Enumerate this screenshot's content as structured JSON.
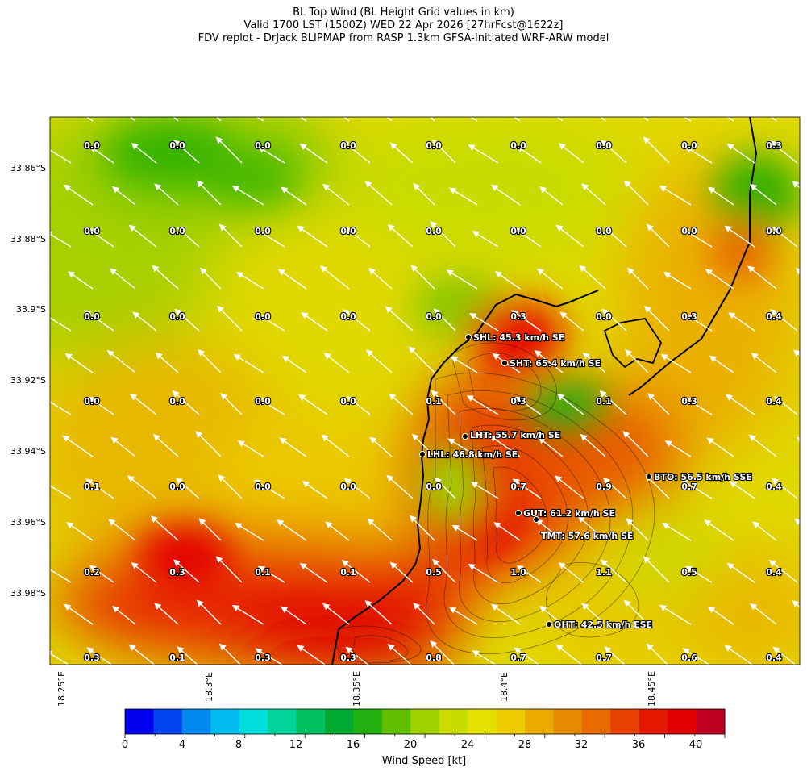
{
  "header": {
    "line1": "BL Top Wind (BL Height Grid values in km)",
    "line2": "Valid 1700 LST (1500Z) WED 22 Apr 2026 [27hrFcst@1622z]",
    "line3": "FDV replot - DrJack BLIPMAP from RASP 1.3km GFSA-Initiated WRF-ARW model"
  },
  "axes": {
    "lat_labels": [
      "33.86°S",
      "33.88°S",
      "33.9°S",
      "33.92°S",
      "33.94°S",
      "33.96°S",
      "33.98°S"
    ],
    "lon_labels": [
      "18.25°E",
      "18.3°E",
      "18.35°E",
      "18.4°E",
      "18.45°E"
    ]
  },
  "grid_values": [
    [
      "0.0",
      "0.0",
      "0.0",
      "0.0",
      "0.0",
      "0.0",
      "0.0",
      "0.0",
      "0.3"
    ],
    [
      "0.0",
      "0.0",
      "0.0",
      "0.0",
      "0.0",
      "0.0",
      "0.0",
      "0.0",
      "0.0"
    ],
    [
      "0.0",
      "0.0",
      "0.0",
      "0.0",
      "0.0",
      "0.3",
      "0.0",
      "0.3",
      "0.4"
    ],
    [
      "0.0",
      "0.0",
      "0.0",
      "0.0",
      "0.1",
      "0.3",
      "0.1",
      "0.3",
      "0.4"
    ],
    [
      "0.1",
      "0.0",
      "0.0",
      "0.0",
      "0.0",
      "0.7",
      "0.9",
      "0.7",
      "0.4"
    ],
    [
      "0.2",
      "0.3",
      "0.1",
      "0.1",
      "0.5",
      "1.0",
      "1.1",
      "0.5",
      "0.4"
    ],
    [
      "0.3",
      "0.1",
      "0.3",
      "0.3",
      "0.8",
      "0.7",
      "0.7",
      "0.6",
      "0.4"
    ]
  ],
  "stations": [
    {
      "label": "SHL: 45.3 km/h SE"
    },
    {
      "label": "SHT: 65.4 km/h SE"
    },
    {
      "label": "LHT: 55.7 km/h SE"
    },
    {
      "label": "LHL: 46.8 km/h SE"
    },
    {
      "label": "BTO: 56.5 km/h SSE"
    },
    {
      "label": "GUT: 61.2 km/h SE"
    },
    {
      "label": "TMT: 57.6 km/h SE"
    },
    {
      "label": "OHT: 42.5 km/h ESE"
    }
  ],
  "colorbar": {
    "label": "Wind Speed [kt]",
    "ticks": [
      "0",
      "4",
      "8",
      "12",
      "16",
      "20",
      "24",
      "28",
      "32",
      "36",
      "40"
    ],
    "colors": [
      "#0000ee",
      "#0044ee",
      "#0088ee",
      "#00bbee",
      "#00dddd",
      "#00d49a",
      "#00c060",
      "#00aa30",
      "#22b010",
      "#60c000",
      "#a0d000",
      "#c8dc00",
      "#e4e000",
      "#eccc00",
      "#eaaa00",
      "#e88a00",
      "#e86a00",
      "#e84000",
      "#e41800",
      "#e00000",
      "#c00020"
    ]
  }
}
